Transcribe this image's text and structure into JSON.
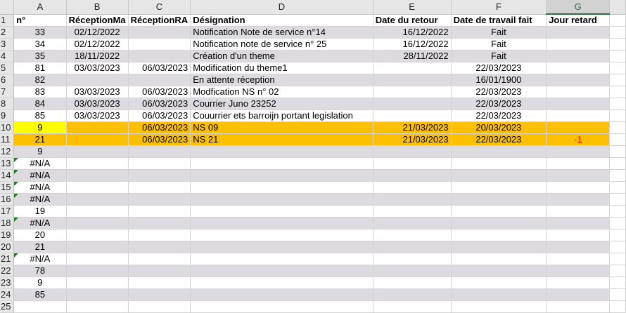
{
  "columns": [
    "A",
    "B",
    "C",
    "D",
    "E",
    "F",
    "G"
  ],
  "selected_column": "G",
  "headers": [
    "n°",
    "RéceptionMa",
    "RéceptionRA",
    "Désignation",
    "Date du retour",
    "Date de travail fait",
    "Jour retard"
  ],
  "rows": [
    {
      "n": "2",
      "cells": [
        "33",
        "02/12/2022",
        "",
        "Notification Note de service n°14",
        "16/12/2022",
        "Fait",
        ""
      ]
    },
    {
      "n": "3",
      "cells": [
        "34",
        "02/12/2022",
        "",
        "Notification  note de service n° 25",
        "16/12/2022",
        "Fait",
        ""
      ]
    },
    {
      "n": "4",
      "cells": [
        "35",
        "18/11/2022",
        "",
        "Création d'un theme",
        "28/11/2022",
        "Fait",
        ""
      ]
    },
    {
      "n": "5",
      "cells": [
        "81",
        "03/03/2023",
        "06/03/2023",
        "Modification du theme1",
        "",
        "22/03/2023",
        ""
      ]
    },
    {
      "n": "6",
      "cells": [
        "82",
        "",
        "",
        "En attente réception",
        "",
        "16/01/1900",
        ""
      ]
    },
    {
      "n": "7",
      "cells": [
        "83",
        "03/03/2023",
        "06/03/2023",
        "Modfication NS n° 02",
        "",
        "22/03/2023",
        ""
      ]
    },
    {
      "n": "8",
      "cells": [
        "84",
        "03/03/2023",
        "06/03/2023",
        "Courrier Juno 23252",
        "",
        "22/03/2023",
        ""
      ]
    },
    {
      "n": "9",
      "cells": [
        "85",
        "03/03/2023",
        "06/03/2023",
        "Couurrier ets barroijn portant legislation",
        "",
        "22/03/2023",
        ""
      ]
    },
    {
      "n": "10",
      "highlight": "orange",
      "cells": [
        "9",
        "",
        "06/03/2023",
        "NS 09",
        "21/03/2023",
        "20/03/2023",
        ""
      ]
    },
    {
      "n": "11",
      "highlight": "orange",
      "cells": [
        "21",
        "",
        "06/03/2023",
        "NS 21",
        "21/03/2023",
        "22/03/2023",
        "-1"
      ]
    },
    {
      "n": "12",
      "cells": [
        "9",
        "",
        "",
        "",
        "",
        "",
        ""
      ]
    },
    {
      "n": "13",
      "error_flag": true,
      "cells": [
        "#N/A",
        "",
        "",
        "",
        "",
        "",
        ""
      ]
    },
    {
      "n": "14",
      "error_flag": true,
      "cells": [
        "#N/A",
        "",
        "",
        "",
        "",
        "",
        ""
      ]
    },
    {
      "n": "15",
      "error_flag": true,
      "cells": [
        "#N/A",
        "",
        "",
        "",
        "",
        "",
        ""
      ]
    },
    {
      "n": "16",
      "error_flag": true,
      "cells": [
        "#N/A",
        "",
        "",
        "",
        "",
        "",
        ""
      ]
    },
    {
      "n": "17",
      "cells": [
        "19",
        "",
        "",
        "",
        "",
        "",
        ""
      ]
    },
    {
      "n": "18",
      "error_flag": true,
      "cells": [
        "#N/A",
        "",
        "",
        "",
        "",
        "",
        ""
      ]
    },
    {
      "n": "19",
      "cells": [
        "20",
        "",
        "",
        "",
        "",
        "",
        ""
      ]
    },
    {
      "n": "20",
      "cells": [
        "21",
        "",
        "",
        "",
        "",
        "",
        ""
      ]
    },
    {
      "n": "21",
      "error_flag": true,
      "cells": [
        "#N/A",
        "",
        "",
        "",
        "",
        "",
        ""
      ]
    },
    {
      "n": "22",
      "cells": [
        "78",
        "",
        "",
        "",
        "",
        "",
        ""
      ]
    },
    {
      "n": "23",
      "cells": [
        "9",
        "",
        "",
        "",
        "",
        "",
        ""
      ]
    },
    {
      "n": "24",
      "cells": [
        "85",
        "",
        "",
        "",
        "",
        "",
        ""
      ]
    },
    {
      "n": "25",
      "empty": true,
      "cells": [
        "",
        "",
        "",
        "",
        "",
        "",
        ""
      ]
    }
  ],
  "colors": {
    "band": "#dddbdf",
    "orange": "#fcc000",
    "yellow": "#ffff00",
    "negative": "#ff0000"
  }
}
